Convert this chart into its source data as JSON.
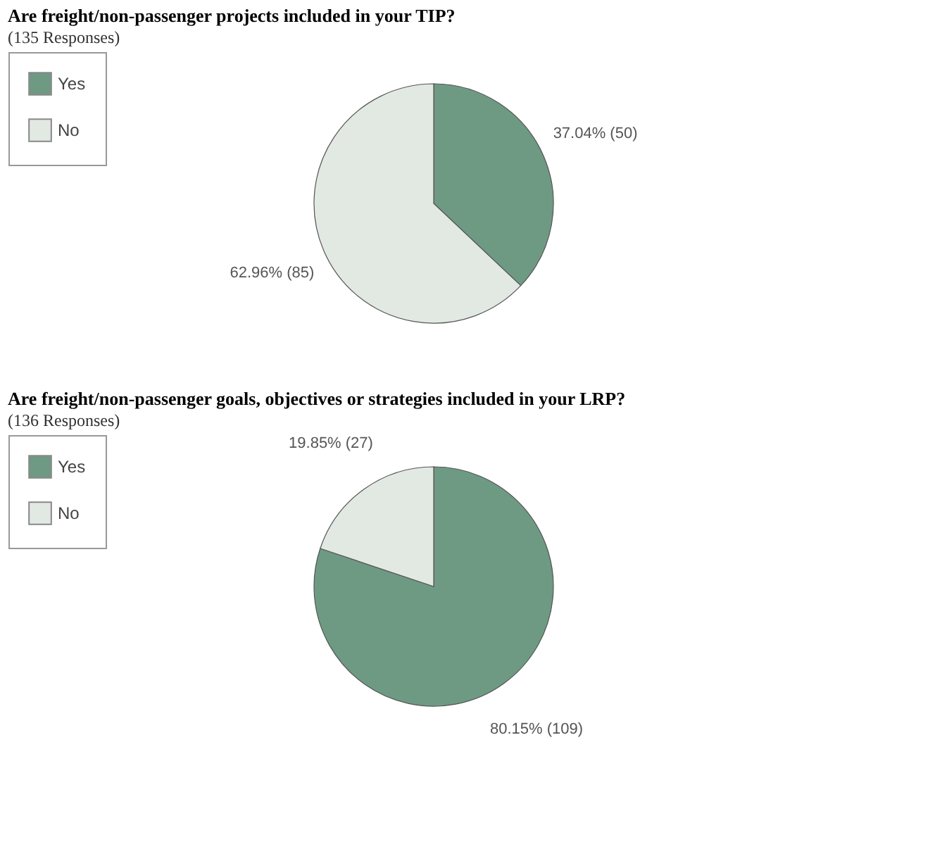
{
  "chart_data": [
    {
      "type": "pie",
      "title": "Are freight/non-passenger projects included in your TIP?",
      "subtitle": "(135 Responses)",
      "categories": [
        "Yes",
        "No"
      ],
      "values": [
        37.04,
        62.96
      ],
      "colors": [
        "#6e9a84",
        "#e2e8e2"
      ],
      "value_labels": [
        "37.04% (50)",
        "62.96% (85)"
      ],
      "legend": "left"
    },
    {
      "type": "pie",
      "title": "Are freight/non-passenger goals, objectives or strategies included in your LRP?",
      "subtitle": "(136 Responses)",
      "categories": [
        "Yes",
        "No"
      ],
      "values": [
        80.15,
        19.85
      ],
      "colors": [
        "#6e9a84",
        "#e2e8e2"
      ],
      "value_labels": [
        "80.15% (109)",
        "19.85% (27)"
      ],
      "legend": "left"
    }
  ]
}
